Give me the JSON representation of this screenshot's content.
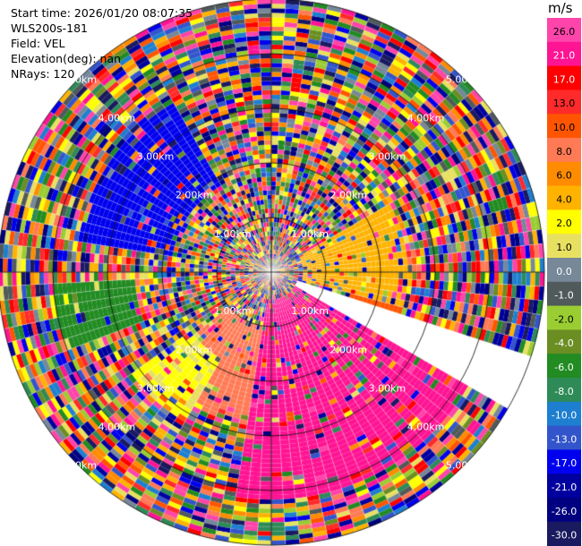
{
  "header": {
    "start_time": "Start time: 2026/01/20 08:07:35",
    "instrument": "WLS200s-181",
    "field": "Field: VEL",
    "elevation": "Elevation(deg): nan",
    "nrays": "NRays: 120"
  },
  "chart_data": {
    "type": "heatmap",
    "projection": "polar (PPI)",
    "nrays": 120,
    "range_max_km": 5.0,
    "range_ring_labels": [
      "1.00km",
      "2.00km",
      "3.00km",
      "4.00km",
      "5.00km"
    ],
    "missing_sector_deg": [
      109,
      120
    ],
    "colorbar": {
      "unit": "m/s",
      "ticks": [
        "26.0",
        "21.0",
        "17.0",
        "13.0",
        "10.0",
        "8.0",
        "6.0",
        "4.0",
        "2.0",
        "1.0",
        "0.0",
        "-1.0",
        "-2.0",
        "-4.0",
        "-6.0",
        "-8.0",
        "-10.0",
        "-13.0",
        "-17.0",
        "-21.0",
        "-26.0",
        "-30.0"
      ],
      "colors": [
        "#ff44aa",
        "#ff1493",
        "#ff0000",
        "#ff2a2a",
        "#ff5500",
        "#ff7a55",
        "#ff8c00",
        "#ffb300",
        "#ffff00",
        "#e8e060",
        "#778899",
        "#505a5a",
        "#9acd32",
        "#6b8e23",
        "#228b22",
        "#2e8b57",
        "#1e7fd0",
        "#3355cc",
        "#0000ee",
        "#0000a0",
        "#000080",
        "#1a1a60"
      ]
    },
    "regions": [
      {
        "azimuth_deg": [
          280,
          330
        ],
        "range_km": [
          1.8,
          3.6
        ],
        "value": -17
      },
      {
        "azimuth_deg": [
          60,
          105
        ],
        "range_km": [
          0.6,
          2.5
        ],
        "value": 4
      },
      {
        "azimuth_deg": [
          80,
          108
        ],
        "range_km": [
          1.5,
          2.5
        ],
        "value": 10
      },
      {
        "azimuth_deg": [
          120,
          190
        ],
        "range_km": [
          0.5,
          4.2
        ],
        "value": 21
      },
      {
        "azimuth_deg": [
          210,
          235
        ],
        "range_km": [
          1.8,
          3.2
        ],
        "value": 2
      },
      {
        "azimuth_deg": [
          250,
          268
        ],
        "range_km": [
          2.5,
          4.0
        ],
        "value": -6
      },
      {
        "azimuth_deg": [
          190,
          230
        ],
        "range_km": [
          1.0,
          2.8
        ],
        "value": 8
      },
      {
        "azimuth_deg": [
          0,
          360
        ],
        "range_km": [
          0.0,
          1.0
        ],
        "value": "mixed"
      }
    ]
  }
}
